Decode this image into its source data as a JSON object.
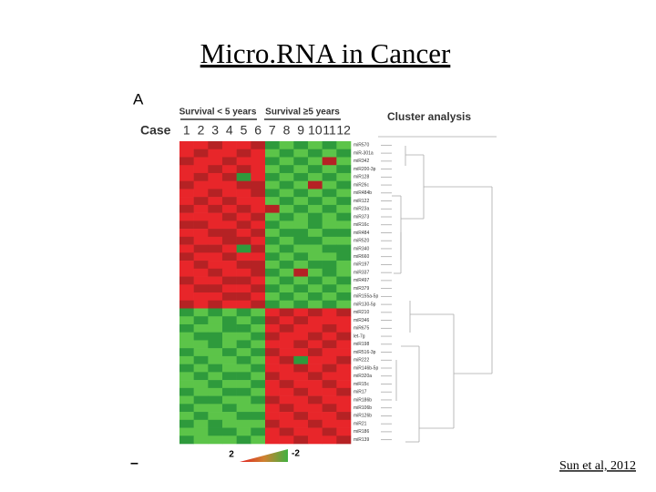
{
  "slide": {
    "title": "Micro.RNA in Cancer",
    "panel_label": "A",
    "case_label": "Case",
    "group_short": "Survival < 5 years",
    "group_long": "Survival ≥5 years",
    "cluster_title": "Cluster analysis",
    "cases": [
      "1",
      "2",
      "3",
      "4",
      "5",
      "6",
      "7",
      "8",
      "9",
      "10",
      "11",
      "12"
    ],
    "rows": [
      "miR570",
      "miR-301a",
      "miR342",
      "miR200-3p",
      "miR128",
      "miR26c",
      "miR484b",
      "miR122",
      "miR23a",
      "miR373",
      "miR16c",
      "miR484",
      "miR520",
      "miR340",
      "miR660",
      "miR197",
      "miR337",
      "miR497",
      "miR379",
      "miR155a-5p",
      "miR130-5p",
      "miR210",
      "miR346",
      "miR675",
      "let-7g",
      "miR198",
      "miR516-3p",
      "miR222",
      "miR146b-5p",
      "miR320a",
      "miR15c",
      "miR17",
      "miR186b",
      "miR106b",
      "miR126b",
      "miR21",
      "miR186",
      "miR139"
    ],
    "values": [
      [
        2,
        2,
        1,
        2,
        2,
        1,
        -1,
        -2,
        -1,
        -2,
        -1,
        -2
      ],
      [
        2,
        1,
        2,
        2,
        1,
        2,
        -2,
        -1,
        -2,
        -1,
        -2,
        -1
      ],
      [
        1,
        2,
        2,
        1,
        2,
        2,
        -1,
        -2,
        -1,
        -2,
        1,
        -2
      ],
      [
        2,
        2,
        1,
        2,
        1,
        2,
        -2,
        -1,
        -2,
        -1,
        -2,
        -1
      ],
      [
        2,
        1,
        2,
        1,
        -1,
        2,
        -1,
        -2,
        -1,
        -2,
        -1,
        -2
      ],
      [
        1,
        2,
        2,
        2,
        1,
        1,
        -2,
        -1,
        -2,
        1,
        -2,
        -1
      ],
      [
        2,
        2,
        1,
        2,
        2,
        1,
        -1,
        -2,
        -1,
        -2,
        -1,
        -2
      ],
      [
        2,
        1,
        2,
        1,
        2,
        2,
        -2,
        -1,
        -2,
        -1,
        -2,
        -1
      ],
      [
        1,
        2,
        1,
        2,
        1,
        2,
        1,
        -2,
        -1,
        -2,
        -1,
        -2
      ],
      [
        2,
        2,
        2,
        1,
        2,
        1,
        -2,
        -1,
        -2,
        -1,
        -2,
        -1
      ],
      [
        1,
        1,
        2,
        2,
        1,
        2,
        -1,
        -2,
        -2,
        -1,
        -2,
        -2
      ],
      [
        2,
        2,
        1,
        1,
        2,
        1,
        -2,
        -1,
        -1,
        -2,
        -1,
        -1
      ],
      [
        1,
        2,
        2,
        1,
        1,
        2,
        -1,
        -2,
        -1,
        -1,
        -2,
        -2
      ],
      [
        2,
        1,
        1,
        2,
        -1,
        1,
        -2,
        -1,
        -2,
        -2,
        -1,
        -1
      ],
      [
        1,
        2,
        2,
        1,
        2,
        2,
        -1,
        -2,
        -1,
        -2,
        -2,
        -1
      ],
      [
        2,
        1,
        2,
        2,
        1,
        1,
        -2,
        -1,
        -2,
        -1,
        -1,
        -2
      ],
      [
        2,
        2,
        1,
        2,
        2,
        1,
        -1,
        -2,
        1,
        -2,
        -1,
        -2
      ],
      [
        1,
        2,
        2,
        1,
        1,
        2,
        -2,
        -1,
        -2,
        -1,
        -2,
        -1
      ],
      [
        2,
        1,
        1,
        2,
        2,
        1,
        -1,
        -2,
        -1,
        -2,
        -1,
        -2
      ],
      [
        2,
        2,
        2,
        1,
        1,
        2,
        -2,
        -1,
        -2,
        -1,
        -2,
        -1
      ],
      [
        1,
        2,
        1,
        2,
        2,
        1,
        -1,
        -2,
        -1,
        -2,
        -1,
        -2
      ],
      [
        -1,
        -2,
        -1,
        -2,
        -1,
        -2,
        2,
        1,
        2,
        1,
        2,
        1
      ],
      [
        -2,
        -1,
        -2,
        -1,
        -2,
        -1,
        1,
        2,
        1,
        2,
        2,
        2
      ],
      [
        -1,
        -2,
        -2,
        -1,
        -1,
        -2,
        2,
        1,
        2,
        2,
        1,
        2
      ],
      [
        -2,
        -1,
        -1,
        -2,
        -2,
        -1,
        1,
        2,
        2,
        1,
        2,
        1
      ],
      [
        -2,
        -2,
        -1,
        -2,
        -1,
        -2,
        2,
        2,
        1,
        2,
        1,
        2
      ],
      [
        -1,
        -2,
        -2,
        -1,
        -2,
        -1,
        1,
        2,
        2,
        1,
        2,
        2
      ],
      [
        -2,
        -1,
        -2,
        -2,
        -1,
        -2,
        2,
        1,
        -1,
        2,
        2,
        1
      ],
      [
        -1,
        -2,
        -1,
        -2,
        -2,
        -1,
        2,
        2,
        1,
        2,
        1,
        2
      ],
      [
        -2,
        -1,
        -2,
        -1,
        -1,
        -2,
        1,
        2,
        2,
        1,
        2,
        2
      ],
      [
        -2,
        -2,
        -1,
        -2,
        -2,
        -1,
        2,
        1,
        2,
        2,
        1,
        2
      ],
      [
        -1,
        -2,
        -2,
        -1,
        -1,
        -2,
        2,
        2,
        1,
        2,
        2,
        1
      ],
      [
        -2,
        -1,
        -1,
        -2,
        -2,
        -1,
        1,
        2,
        2,
        1,
        2,
        2
      ],
      [
        -1,
        -2,
        -2,
        -1,
        -2,
        -2,
        2,
        1,
        2,
        2,
        1,
        2
      ],
      [
        -2,
        -1,
        -2,
        -2,
        -1,
        -1,
        2,
        2,
        1,
        2,
        2,
        1
      ],
      [
        -1,
        -2,
        -1,
        -2,
        -2,
        -2,
        1,
        2,
        2,
        1,
        2,
        2
      ],
      [
        -2,
        -2,
        -1,
        -1,
        -2,
        -1,
        2,
        1,
        2,
        2,
        1,
        2
      ],
      [
        -1,
        -2,
        -2,
        -2,
        -1,
        -2,
        2,
        2,
        1,
        2,
        2,
        1
      ]
    ],
    "scale_high": "2",
    "scale_low": "-2",
    "dash": "–",
    "citation": "Sun et al, 2012"
  }
}
